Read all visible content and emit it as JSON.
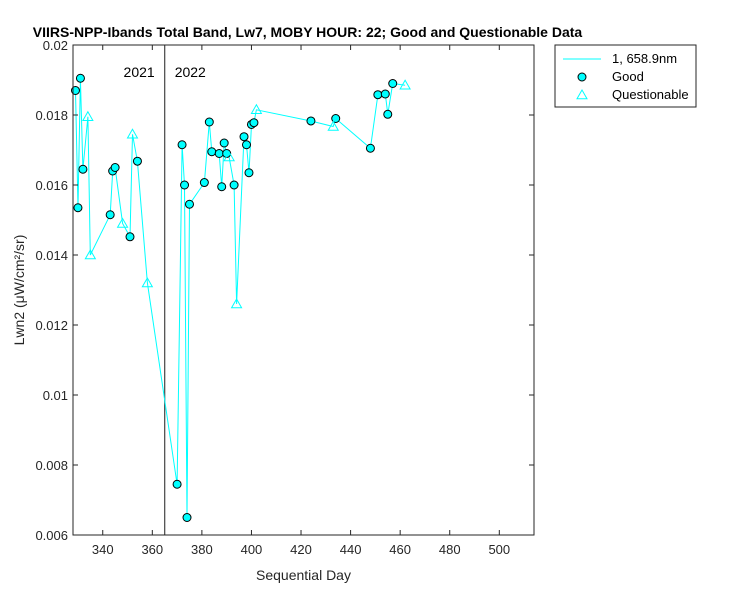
{
  "chart_data": {
    "type": "line",
    "title": "VIIRS-NPP-Ibands Total Band, Lw7, MOBY HOUR: 22;  Good and Questionable Data",
    "xlabel": "Sequential Day",
    "ylabel": "Lwn2 (μW/cm²/sr)",
    "xlim": [
      328,
      514
    ],
    "ylim": [
      0.006,
      0.02
    ],
    "xticks": [
      340,
      360,
      380,
      400,
      420,
      440,
      460,
      480,
      500
    ],
    "yticks": [
      0.006,
      0.008,
      0.01,
      0.012,
      0.014,
      0.016,
      0.018,
      0.02
    ],
    "ytick_labels": [
      "0.006",
      "0.008",
      "0.01",
      "0.012",
      "0.014",
      "0.016",
      "0.018",
      "0.02"
    ],
    "grid": false,
    "legend_position": "outside-top-right",
    "series": [
      {
        "name": "1, 658.9nm",
        "role": "line",
        "color": "#00FFFF",
        "x": [
          329,
          330,
          331,
          332,
          334,
          335,
          343,
          344,
          345,
          348,
          351,
          352,
          354,
          358,
          370,
          372,
          373,
          374,
          375,
          381,
          383,
          384,
          387,
          388,
          389,
          390,
          391,
          393,
          394,
          397,
          398,
          399,
          400,
          401,
          402,
          424,
          433,
          434,
          448,
          451,
          454,
          455,
          457,
          462
        ],
        "y": [
          0.0187,
          0.01535,
          0.01905,
          0.01645,
          0.01795,
          0.014,
          0.01515,
          0.0164,
          0.0165,
          0.0149,
          0.01452,
          0.01745,
          0.01668,
          0.0132,
          0.00745,
          0.01715,
          0.016,
          0.0065,
          0.01545,
          0.01607,
          0.0178,
          0.01695,
          0.0169,
          0.01595,
          0.0172,
          0.0169,
          0.0168,
          0.016,
          0.0126,
          0.01738,
          0.01715,
          0.01635,
          0.01773,
          0.01778,
          0.01815,
          0.01783,
          0.01767,
          0.0179,
          0.01705,
          0.01858,
          0.0186,
          0.01802,
          0.0189,
          0.01885
        ]
      },
      {
        "name": "Good",
        "role": "circle",
        "color": "#00FFFF",
        "x": [
          329,
          330,
          331,
          332,
          343,
          344,
          345,
          351,
          354,
          370,
          372,
          373,
          374,
          375,
          381,
          383,
          384,
          387,
          388,
          389,
          390,
          393,
          397,
          398,
          399,
          400,
          401,
          424,
          434,
          448,
          451,
          454,
          455,
          457
        ],
        "y": [
          0.0187,
          0.01535,
          0.01905,
          0.01645,
          0.01515,
          0.0164,
          0.0165,
          0.01452,
          0.01668,
          0.00745,
          0.01715,
          0.016,
          0.0065,
          0.01545,
          0.01607,
          0.0178,
          0.01695,
          0.0169,
          0.01595,
          0.0172,
          0.0169,
          0.016,
          0.01738,
          0.01715,
          0.01635,
          0.01773,
          0.01778,
          0.01783,
          0.0179,
          0.01705,
          0.01858,
          0.0186,
          0.01802,
          0.0189
        ]
      },
      {
        "name": "Questionable",
        "role": "triangle",
        "color": "#00FFFF",
        "x": [
          334,
          335,
          348,
          352,
          358,
          391,
          394,
          402,
          433,
          462
        ],
        "y": [
          0.01795,
          0.014,
          0.0149,
          0.01745,
          0.0132,
          0.0168,
          0.0126,
          0.01815,
          0.01767,
          0.01885
        ]
      }
    ],
    "annotations": [
      {
        "text": "2021",
        "x_data": 365,
        "side": "left"
      },
      {
        "text": "2022",
        "x_data": 365,
        "side": "right"
      }
    ],
    "vline_x": 365
  }
}
